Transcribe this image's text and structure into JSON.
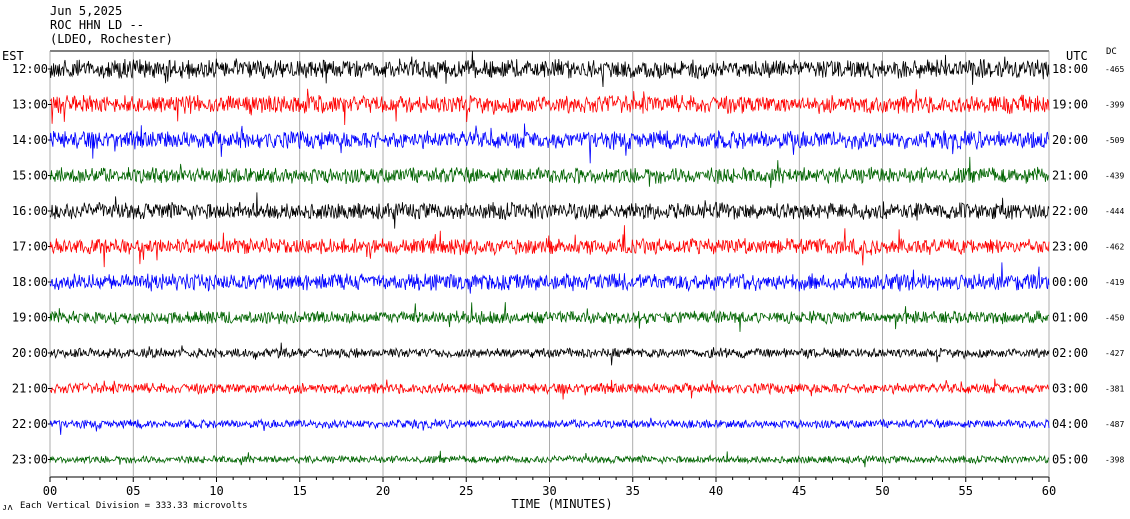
{
  "header": {
    "date": "Jun 5,2025",
    "station": "ROC HHN LD --",
    "network": "(LDEO, Rochester)"
  },
  "left_zone_label": "EST",
  "right_zone_label": "UTC",
  "dc_label": "DC",
  "footer": {
    "scale_note": "Each Vertical Division = 333.33 microvolts",
    "corner_mark": "ᴊʌ"
  },
  "colors": {
    "black": "#000000",
    "red": "#ff0000",
    "blue": "#0000ff",
    "green": "#006400",
    "grid": "#999999"
  },
  "chart_data": {
    "type": "line",
    "title": "ROC HHN LD --",
    "xlabel": "TIME (MINUTES)",
    "xlim": [
      0,
      60
    ],
    "x_ticks": [
      "00",
      "05",
      "10",
      "15",
      "20",
      "25",
      "30",
      "35",
      "40",
      "45",
      "50",
      "55",
      "60"
    ],
    "grid": true,
    "series": [
      {
        "est": "12:00",
        "utc": "18:00",
        "dc": "-465",
        "color": "black",
        "noise": 0.9
      },
      {
        "est": "13:00",
        "utc": "19:00",
        "dc": "-399",
        "color": "red",
        "noise": 0.85
      },
      {
        "est": "14:00",
        "utc": "20:00",
        "dc": "-509",
        "color": "blue",
        "noise": 0.85
      },
      {
        "est": "15:00",
        "utc": "21:00",
        "dc": "-439",
        "color": "green",
        "noise": 0.75
      },
      {
        "est": "16:00",
        "utc": "22:00",
        "dc": "-444",
        "color": "black",
        "noise": 0.8
      },
      {
        "est": "17:00",
        "utc": "23:00",
        "dc": "-462",
        "color": "red",
        "noise": 0.75
      },
      {
        "est": "18:00",
        "utc": "00:00",
        "dc": "-419",
        "color": "blue",
        "noise": 0.8
      },
      {
        "est": "19:00",
        "utc": "01:00",
        "dc": "-450",
        "color": "green",
        "noise": 0.6
      },
      {
        "est": "20:00",
        "utc": "02:00",
        "dc": "-427",
        "color": "black",
        "noise": 0.45
      },
      {
        "est": "21:00",
        "utc": "03:00",
        "dc": "-381",
        "color": "red",
        "noise": 0.5
      },
      {
        "est": "22:00",
        "utc": "04:00",
        "dc": "-487",
        "color": "blue",
        "noise": 0.4
      },
      {
        "est": "23:00",
        "utc": "05:00",
        "dc": "-398",
        "color": "green",
        "noise": 0.35
      }
    ]
  }
}
